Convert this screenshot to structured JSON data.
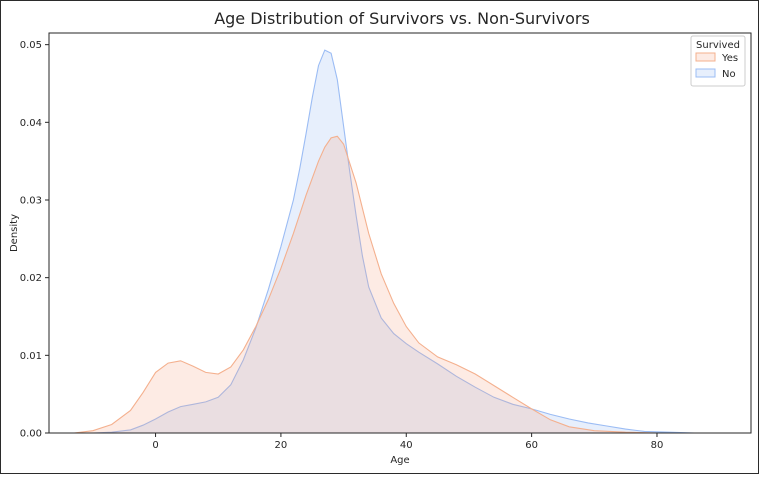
{
  "colors": {
    "yes_fill": "#f4a582",
    "yes_line": "#f4b08e",
    "no_fill": "#92b4f2",
    "no_line": "#9bbcf4",
    "axis": "#262626"
  },
  "chart_data": {
    "type": "area",
    "title": "Age Distribution of Survivors vs. Non-Survivors",
    "xlabel": "Age",
    "ylabel": "Density",
    "xlim": [
      -17,
      95
    ],
    "ylim": [
      0,
      0.0515
    ],
    "xticks": [
      0,
      20,
      40,
      60,
      80
    ],
    "yticks": [
      0.0,
      0.01,
      0.02,
      0.03,
      0.04,
      0.05
    ],
    "ytick_labels": [
      "0.00",
      "0.01",
      "0.02",
      "0.03",
      "0.04",
      "0.05"
    ],
    "grid": false,
    "legend": {
      "title": "Survived",
      "placement": "top-right",
      "entries": [
        "Yes",
        "No"
      ]
    },
    "series": [
      {
        "name": "Yes",
        "x": [
          -13,
          -10,
          -7,
          -4,
          -2,
          0,
          2,
          4,
          6,
          8,
          10,
          12,
          14,
          16,
          18,
          20,
          22,
          24,
          26,
          27,
          28,
          29,
          30,
          32,
          34,
          36,
          38,
          40,
          42,
          45,
          48,
          51,
          54,
          57,
          60,
          63,
          66,
          70,
          75,
          80
        ],
        "y": [
          0.0,
          0.0003,
          0.0011,
          0.0029,
          0.0052,
          0.0078,
          0.009,
          0.0093,
          0.0086,
          0.0078,
          0.0076,
          0.0085,
          0.0107,
          0.0137,
          0.0172,
          0.0212,
          0.0257,
          0.0306,
          0.035,
          0.0368,
          0.038,
          0.0382,
          0.0372,
          0.0322,
          0.0257,
          0.0205,
          0.0167,
          0.0137,
          0.0116,
          0.0098,
          0.0088,
          0.0076,
          0.0061,
          0.0046,
          0.0031,
          0.0017,
          0.0008,
          0.0003,
          0.0001,
          0.0
        ]
      },
      {
        "name": "No",
        "x": [
          -10,
          -7,
          -4,
          -2,
          0,
          2,
          4,
          6,
          8,
          10,
          12,
          14,
          16,
          18,
          20,
          22,
          23,
          24,
          25,
          26,
          27,
          28,
          29,
          30,
          31,
          32,
          33,
          34,
          36,
          38,
          40,
          42,
          45,
          48,
          51,
          54,
          57,
          60,
          63,
          66,
          69,
          72,
          75,
          78,
          82,
          86,
          91,
          93
        ],
        "y": [
          0.0,
          0.0001,
          0.0004,
          0.001,
          0.0018,
          0.0027,
          0.0034,
          0.0037,
          0.004,
          0.0046,
          0.0062,
          0.0094,
          0.0135,
          0.0185,
          0.024,
          0.03,
          0.034,
          0.0385,
          0.0432,
          0.0473,
          0.0493,
          0.0489,
          0.0455,
          0.0395,
          0.0335,
          0.028,
          0.0228,
          0.0188,
          0.0148,
          0.0128,
          0.0115,
          0.0104,
          0.0089,
          0.0073,
          0.0059,
          0.0046,
          0.0037,
          0.0031,
          0.0024,
          0.0018,
          0.0013,
          0.0009,
          0.0005,
          0.0002,
          0.0001,
          0.0,
          0.0,
          0.0
        ]
      }
    ]
  }
}
